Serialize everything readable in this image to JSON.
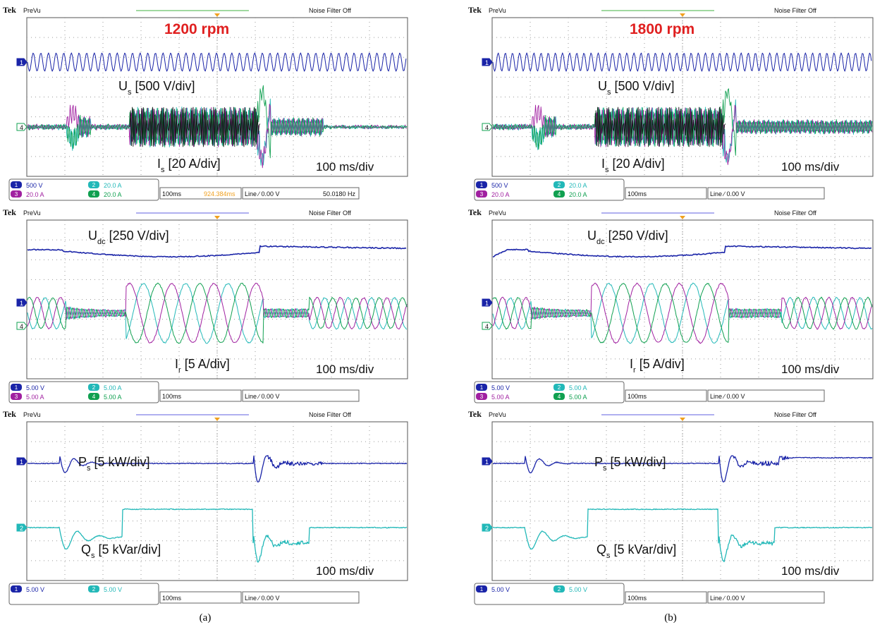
{
  "figure": {
    "captions": [
      "(a)",
      "(b)"
    ]
  },
  "header": {
    "brand": "Tek",
    "mode": "PreVu",
    "noise_filter": "Noise Filter Off"
  },
  "colors": {
    "ch1": "#1a24a8",
    "ch2": "#22b8b8",
    "ch3": "#a020a0",
    "ch4": "#10a050",
    "black": "#111111",
    "grid": "#9a9a9a",
    "title_red": "#e02020",
    "cursor_orange": "#f0a020"
  },
  "chart_data": [
    {
      "panel": "(a)",
      "title": "1200 rpm",
      "type": "line",
      "scopes": [
        {
          "time_div": "100 ms/div",
          "labels": [
            {
              "main": "U",
              "sub": "s",
              "rest": " [500 V/div]"
            },
            {
              "main": "I",
              "sub": "s",
              "rest": " [20 A/div]"
            }
          ],
          "markers": [
            "1",
            "4"
          ],
          "status": {
            "ch": [
              {
                "n": "1",
                "v": "500 V"
              },
              {
                "n": "2",
                "v": "20.0 A"
              },
              {
                "n": "3",
                "v": "20.0 A"
              },
              {
                "n": "4",
                "v": "20.0 A"
              }
            ],
            "timebase": "100ms",
            "cursor": "924.384ms",
            "trigger": "Line  ∕ 0.00 V",
            "freq": "50.0180 Hz"
          },
          "series": [
            {
              "name": "U_s",
              "channel": 1
            },
            {
              "name": "I_s",
              "channels": [
                2,
                3,
                4
              ]
            }
          ]
        },
        {
          "time_div": "100 ms/div",
          "labels": [
            {
              "main": "U",
              "sub": "dc",
              "rest": " [250 V/div]"
            },
            {
              "main": "I",
              "sub": "r",
              "rest": " [5 A/div]"
            }
          ],
          "markers": [
            "1",
            "4"
          ],
          "status": {
            "ch": [
              {
                "n": "1",
                "v": "5.00 V"
              },
              {
                "n": "2",
                "v": "5.00 A"
              },
              {
                "n": "3",
                "v": "5.00 A"
              },
              {
                "n": "4",
                "v": "5.00 A"
              }
            ],
            "timebase": "100ms",
            "cursor": "",
            "trigger": "Line  ∕ 0.00 V",
            "freq": ""
          },
          "series": [
            {
              "name": "U_dc",
              "channel": 1
            },
            {
              "name": "I_r",
              "channels": [
                2,
                3,
                4
              ]
            }
          ]
        },
        {
          "time_div": "100 ms/div",
          "labels": [
            {
              "main": "P",
              "sub": "s",
              "rest": " [5 kW/div]"
            },
            {
              "main": "Q",
              "sub": "s",
              "rest": " [5 kVar/div]"
            }
          ],
          "markers": [
            "1",
            "2"
          ],
          "status": {
            "ch": [
              {
                "n": "1",
                "v": "5.00 V"
              },
              {
                "n": "2",
                "v": "5.00 V"
              }
            ],
            "timebase": "100ms",
            "cursor": "",
            "trigger": "Line  ∕ 0.00 V",
            "freq": ""
          },
          "series": [
            {
              "name": "P_s",
              "channel": 1
            },
            {
              "name": "Q_s",
              "channel": 2
            }
          ]
        }
      ]
    },
    {
      "panel": "(b)",
      "title": "1800 rpm",
      "type": "line",
      "scopes": [
        {
          "time_div": "100 ms/div",
          "labels": [
            {
              "main": "U",
              "sub": "s",
              "rest": " [500 V/div]"
            },
            {
              "main": "I",
              "sub": "s",
              "rest": " [20 A/div]"
            }
          ],
          "markers": [
            "1",
            "4"
          ],
          "status": {
            "ch": [
              {
                "n": "1",
                "v": "500 V"
              },
              {
                "n": "2",
                "v": "20.0 A"
              },
              {
                "n": "3",
                "v": "20.0 A"
              },
              {
                "n": "4",
                "v": "20.0 A"
              }
            ],
            "timebase": "100ms",
            "cursor": "",
            "trigger": "Line  ∕ 0.00 V",
            "freq": ""
          },
          "series": [
            {
              "name": "U_s",
              "channel": 1
            },
            {
              "name": "I_s",
              "channels": [
                2,
                3,
                4
              ]
            }
          ]
        },
        {
          "time_div": "100 ms/div",
          "labels": [
            {
              "main": "U",
              "sub": "dc",
              "rest": " [250 V/div]"
            },
            {
              "main": "I",
              "sub": "r",
              "rest": " [5 A/div]"
            }
          ],
          "markers": [
            "1",
            "4"
          ],
          "status": {
            "ch": [
              {
                "n": "1",
                "v": "5.00 V"
              },
              {
                "n": "2",
                "v": "5.00 A"
              },
              {
                "n": "3",
                "v": "5.00 A"
              },
              {
                "n": "4",
                "v": "5.00 A"
              }
            ],
            "timebase": "100ms",
            "cursor": "",
            "trigger": "Line  ∕ 0.00 V",
            "freq": ""
          },
          "series": [
            {
              "name": "U_dc",
              "channel": 1
            },
            {
              "name": "I_r",
              "channels": [
                2,
                3,
                4
              ]
            }
          ]
        },
        {
          "time_div": "100 ms/div",
          "labels": [
            {
              "main": "P",
              "sub": "s",
              "rest": " [5 kW/div]"
            },
            {
              "main": "Q",
              "sub": "s",
              "rest": " [5 kVar/div]"
            }
          ],
          "markers": [
            "1",
            "2"
          ],
          "status": {
            "ch": [
              {
                "n": "1",
                "v": "5.00 V"
              },
              {
                "n": "2",
                "v": "5.00 V"
              }
            ],
            "timebase": "100ms",
            "cursor": "",
            "trigger": "Line  ∕ 0.00 V",
            "freq": ""
          },
          "series": [
            {
              "name": "P_s",
              "channel": 1
            },
            {
              "name": "Q_s",
              "channel": 2
            }
          ]
        }
      ]
    }
  ]
}
